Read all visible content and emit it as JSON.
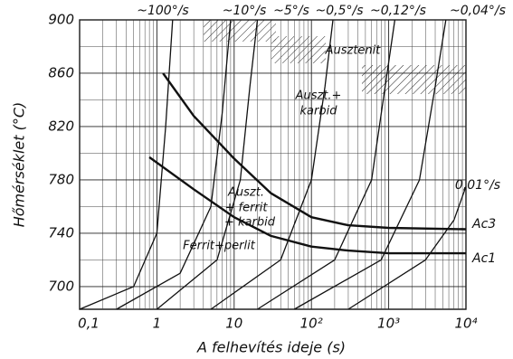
{
  "chart_data": {
    "type": "line",
    "xlabel": "A felhevítés ideje (s)",
    "ylabel": "Hőmérséklet (°C)",
    "xscale": "log",
    "xlim": [
      0.1,
      10000
    ],
    "ylim": [
      683,
      900
    ],
    "xticks": [
      {
        "value": 0.1,
        "label": "0,1"
      },
      1,
      10,
      {
        "value": 100,
        "label": "10²"
      },
      {
        "value": 1000,
        "label": "10³"
      },
      {
        "value": 10000,
        "label": "10⁴"
      }
    ],
    "yticks": [
      700,
      740,
      780,
      820,
      860,
      900
    ],
    "grid": true,
    "annotations": [
      "Ausztenit",
      "Auszt.+",
      "karbid",
      "Auszt.",
      "+ ferrit",
      "+ karbid",
      "Ferrit+perlit"
    ],
    "series": [
      {
        "name": "~100°/s",
        "color": "#111",
        "x": [
          0.1,
          0.5,
          1,
          1.3,
          1.6
        ],
        "values": [
          683,
          700,
          740,
          820,
          900
        ]
      },
      {
        "name": "~10°/s",
        "color": "#111",
        "x": [
          0.3,
          2,
          5,
          7,
          9
        ],
        "values": [
          683,
          710,
          760,
          830,
          900
        ]
      },
      {
        "name": "~5°/s",
        "color": "#111",
        "x": [
          1,
          6,
          12,
          16,
          20
        ],
        "values": [
          683,
          720,
          780,
          850,
          900
        ]
      },
      {
        "name": "~0,5°/s",
        "color": "#111",
        "x": [
          5,
          40,
          100,
          150,
          190
        ],
        "values": [
          683,
          720,
          780,
          850,
          900
        ]
      },
      {
        "name": "~0,12°/s",
        "color": "#111",
        "x": [
          20,
          200,
          600,
          900,
          1200
        ],
        "values": [
          683,
          720,
          780,
          850,
          900
        ]
      },
      {
        "name": "~0,04°/s",
        "color": "#111",
        "x": [
          60,
          800,
          2500,
          4000,
          5500
        ],
        "values": [
          683,
          720,
          780,
          850,
          900
        ]
      },
      {
        "name": "0,01°/s",
        "color": "#111",
        "x": [
          300,
          3000,
          7000,
          10000
        ],
        "values": [
          683,
          720,
          750,
          775
        ]
      },
      {
        "name": "Ac3",
        "color": "#111",
        "x": [
          1.2,
          3,
          10,
          30,
          100,
          300,
          1000,
          10000
        ],
        "values": [
          860,
          828,
          796,
          770,
          752,
          746,
          744,
          743
        ]
      },
      {
        "name": "Ac1",
        "color": "#111",
        "x": [
          0.8,
          3,
          10,
          30,
          100,
          300,
          1000,
          10000
        ],
        "values": [
          797,
          773,
          752,
          738,
          730,
          727,
          725,
          725
        ]
      }
    ]
  }
}
